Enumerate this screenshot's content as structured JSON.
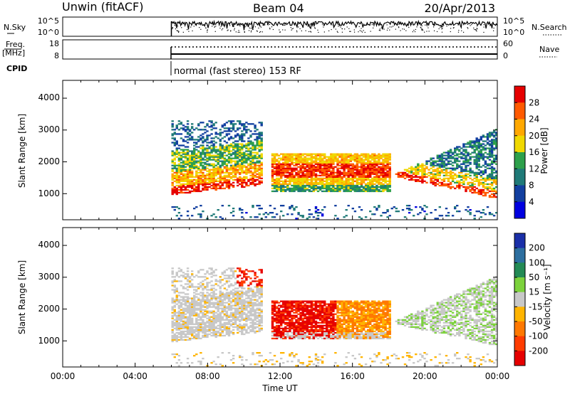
{
  "header": {
    "station": "Unwin (fitACF)",
    "beam": "Beam 04",
    "date": "20/Apr/2013"
  },
  "sky_panel": {
    "left_label": "N.Sky",
    "left_ticks": [
      "10^5",
      "10^0"
    ],
    "right_ticks": [
      "10^5",
      "10^0"
    ],
    "right_label": "N.Search"
  },
  "freq_panel": {
    "left_label_1": "Freq.",
    "left_label_2": "[MHz]",
    "left_ticks": [
      "18",
      "8"
    ],
    "right_ticks": [
      "60",
      "0"
    ],
    "right_label": "Nave"
  },
  "cpid": {
    "label": "CPID",
    "text": "normal (fast stereo) 153 RF"
  },
  "chart_data": [
    {
      "type": "heatmap",
      "quantity": "Power",
      "ylabel": "Slant Range [km]",
      "y_ticks": [
        1000,
        2000,
        3000,
        4000
      ],
      "ylim": [
        180,
        4560
      ],
      "colorbar_label": "Power [dB]",
      "colorbar_ticks": [
        "28",
        "24",
        "20",
        "16",
        "12",
        "8",
        "4"
      ],
      "colorbar_colors": [
        "#e60000",
        "#ff5a00",
        "#ffa800",
        "#f0d800",
        "#2da04b",
        "#1f7a78",
        "#123fa0",
        "#0000e0"
      ],
      "data_start_hour": 6,
      "data_end_hour": 24,
      "echo_regions": [
        {
          "t_start": 6.0,
          "t_end": 11.0,
          "range_min_km": 900,
          "range_max_km": 3300,
          "level": "4-28 dB"
        },
        {
          "t_start": 11.5,
          "t_end": 18.0,
          "range_min_km": 1100,
          "range_max_km": 2200,
          "level": "12-28 dB"
        },
        {
          "t_start": 18.3,
          "t_end": 24.0,
          "range_min_km": 800,
          "range_max_km": 3200,
          "level": "4-28 dB"
        }
      ]
    },
    {
      "type": "heatmap",
      "quantity": "Velocity",
      "ylabel": "Slant Range [km]",
      "y_ticks": [
        1000,
        2000,
        3000,
        4000
      ],
      "ylim": [
        180,
        4560
      ],
      "colorbar_label": "Velocity [m s⁻¹]",
      "colorbar_ticks": [
        "200",
        "100",
        "50",
        "15",
        "-15",
        "-50",
        "-100",
        "-200"
      ],
      "colorbar_colors": [
        "#1a2fa8",
        "#2d6fa0",
        "#238a55",
        "#7cd23c",
        "#c8c8c8",
        "#ffb400",
        "#ff7800",
        "#ff3c00",
        "#e60000"
      ],
      "xlabel": "Time UT",
      "x_ticks": [
        "00:00",
        "04:00",
        "08:00",
        "12:00",
        "16:00",
        "20:00",
        "00:00"
      ],
      "x_range_hours": [
        0,
        24
      ]
    }
  ]
}
